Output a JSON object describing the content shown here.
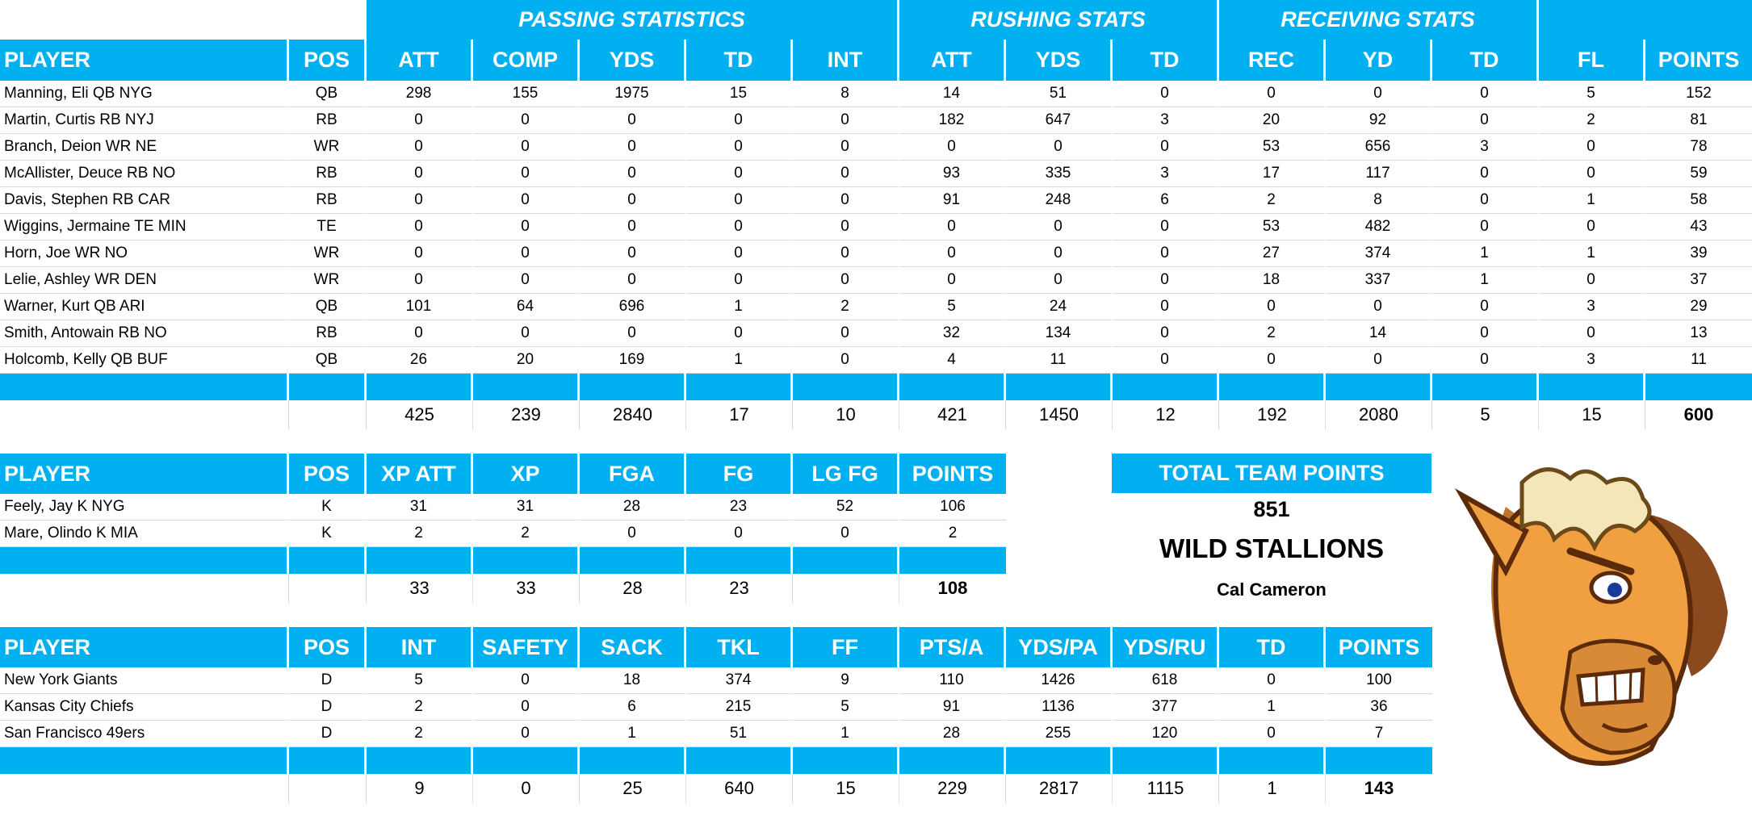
{
  "offense": {
    "group_headers": [
      "",
      "",
      "PASSING STATISTICS",
      "RUSHING STATS",
      "RECEIVING STATS",
      ""
    ],
    "headers": [
      "PLAYER",
      "POS",
      "ATT",
      "COMP",
      "YDS",
      "TD",
      "INT",
      "ATT",
      "YDS",
      "TD",
      "REC",
      "YD",
      "TD",
      "FL",
      "POINTS"
    ],
    "rows": [
      [
        "Manning, Eli QB NYG",
        "QB",
        "298",
        "155",
        "1975",
        "15",
        "8",
        "14",
        "51",
        "0",
        "0",
        "0",
        "0",
        "5",
        "152"
      ],
      [
        "Martin, Curtis RB NYJ",
        "RB",
        "0",
        "0",
        "0",
        "0",
        "0",
        "182",
        "647",
        "3",
        "20",
        "92",
        "0",
        "2",
        "81"
      ],
      [
        "Branch, Deion WR NE",
        "WR",
        "0",
        "0",
        "0",
        "0",
        "0",
        "0",
        "0",
        "0",
        "53",
        "656",
        "3",
        "0",
        "78"
      ],
      [
        "McAllister, Deuce RB NO",
        "RB",
        "0",
        "0",
        "0",
        "0",
        "0",
        "93",
        "335",
        "3",
        "17",
        "117",
        "0",
        "0",
        "59"
      ],
      [
        "Davis, Stephen RB CAR",
        "RB",
        "0",
        "0",
        "0",
        "0",
        "0",
        "91",
        "248",
        "6",
        "2",
        "8",
        "0",
        "1",
        "58"
      ],
      [
        "Wiggins, Jermaine TE MIN",
        "TE",
        "0",
        "0",
        "0",
        "0",
        "0",
        "0",
        "0",
        "0",
        "53",
        "482",
        "0",
        "0",
        "43"
      ],
      [
        "Horn, Joe WR NO",
        "WR",
        "0",
        "0",
        "0",
        "0",
        "0",
        "0",
        "0",
        "0",
        "27",
        "374",
        "1",
        "1",
        "39"
      ],
      [
        "Lelie, Ashley WR DEN",
        "WR",
        "0",
        "0",
        "0",
        "0",
        "0",
        "0",
        "0",
        "0",
        "18",
        "337",
        "1",
        "0",
        "37"
      ],
      [
        "Warner, Kurt QB ARI",
        "QB",
        "101",
        "64",
        "696",
        "1",
        "2",
        "5",
        "24",
        "0",
        "0",
        "0",
        "0",
        "3",
        "29"
      ],
      [
        "Smith, Antowain RB NO",
        "RB",
        "0",
        "0",
        "0",
        "0",
        "0",
        "32",
        "134",
        "0",
        "2",
        "14",
        "0",
        "0",
        "13"
      ],
      [
        "Holcomb, Kelly QB BUF",
        "QB",
        "26",
        "20",
        "169",
        "1",
        "0",
        "4",
        "11",
        "0",
        "0",
        "0",
        "0",
        "3",
        "11"
      ]
    ],
    "totals": [
      "",
      "",
      "425",
      "239",
      "2840",
      "17",
      "10",
      "421",
      "1450",
      "12",
      "192",
      "2080",
      "5",
      "15",
      "600"
    ]
  },
  "kicking": {
    "headers": [
      "PLAYER",
      "POS",
      "XP ATT",
      "XP",
      "FGA",
      "FG",
      "LG FG",
      "POINTS"
    ],
    "rows": [
      [
        "Feely, Jay K NYG",
        "K",
        "31",
        "31",
        "28",
        "23",
        "52",
        "106"
      ],
      [
        "Mare, Olindo K MIA",
        "K",
        "2",
        "2",
        "0",
        "0",
        "0",
        "2"
      ]
    ],
    "totals": [
      "",
      "",
      "33",
      "33",
      "28",
      "23",
      "",
      "108"
    ]
  },
  "defense": {
    "headers": [
      "PLAYER",
      "POS",
      "INT",
      "SAFETY",
      "SACK",
      "TKL",
      "FF",
      "PTS/A",
      "YDS/PA",
      "YDS/RU",
      "TD",
      "POINTS"
    ],
    "rows": [
      [
        "New York Giants",
        "D",
        "5",
        "0",
        "18",
        "374",
        "9",
        "110",
        "1426",
        "618",
        "0",
        "100"
      ],
      [
        "Kansas City Chiefs",
        "D",
        "2",
        "0",
        "6",
        "215",
        "5",
        "91",
        "1136",
        "377",
        "1",
        "36"
      ],
      [
        "San Francisco 49ers",
        "D",
        "2",
        "0",
        "1",
        "51",
        "1",
        "28",
        "255",
        "120",
        "0",
        "7"
      ]
    ],
    "totals": [
      "",
      "",
      "9",
      "0",
      "25",
      "640",
      "15",
      "229",
      "2817",
      "1115",
      "1",
      "143"
    ]
  },
  "team": {
    "header": "TOTAL TEAM POINTS",
    "points": "851",
    "name": "WILD STALLIONS",
    "owner": "Cal Cameron"
  },
  "logo": {
    "icon": "stallion-mascot-icon"
  },
  "colors": {
    "accent": "#00b0f0",
    "gridline": "#d9d9d9",
    "horse": "#f0a040"
  }
}
